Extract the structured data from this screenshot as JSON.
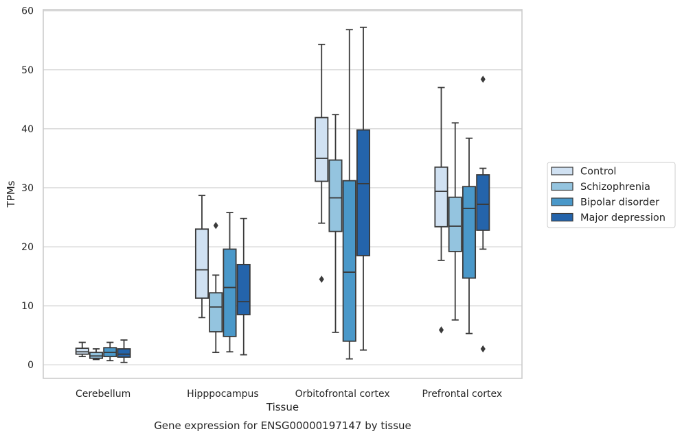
{
  "chart_data": {
    "type": "box",
    "title": "",
    "caption": "Gene expression for ENSG00000197147 by tissue",
    "xlabel": "Tissue",
    "ylabel": "TPMs",
    "ylim": [
      -2.3,
      60.2
    ],
    "yticks": [
      0,
      10,
      20,
      30,
      40,
      50,
      60
    ],
    "grid": "horizontal",
    "legend_position": "right",
    "categories": [
      "Cerebellum",
      "Hipppocampus",
      "Orbitofrontal cortex",
      "Prefrontal cortex"
    ],
    "series": [
      {
        "name": "Control",
        "color": "#d0e1f2",
        "boxes": [
          {
            "whisker_low": 1.4,
            "q1": 1.8,
            "median": 2.2,
            "q3": 2.8,
            "whisker_high": 3.8,
            "outliers": []
          },
          {
            "whisker_low": 8.0,
            "q1": 11.3,
            "median": 16.1,
            "q3": 23.0,
            "whisker_high": 28.7,
            "outliers": []
          },
          {
            "whisker_low": 24.0,
            "q1": 31.1,
            "median": 35.0,
            "q3": 41.9,
            "whisker_high": 54.3,
            "outliers": [
              14.5
            ]
          },
          {
            "whisker_low": 17.7,
            "q1": 23.4,
            "median": 29.4,
            "q3": 33.5,
            "whisker_high": 47.0,
            "outliers": [
              5.9
            ]
          }
        ]
      },
      {
        "name": "Schizophrenia",
        "color": "#94c4df",
        "boxes": [
          {
            "whisker_low": 0.9,
            "q1": 1.1,
            "median": 1.5,
            "q3": 2.1,
            "whisker_high": 2.7,
            "outliers": []
          },
          {
            "whisker_low": 2.1,
            "q1": 5.6,
            "median": 9.8,
            "q3": 12.2,
            "whisker_high": 15.2,
            "outliers": [
              23.6
            ]
          },
          {
            "whisker_low": 5.5,
            "q1": 22.6,
            "median": 28.3,
            "q3": 34.7,
            "whisker_high": 42.4,
            "outliers": []
          },
          {
            "whisker_low": 7.6,
            "q1": 19.2,
            "median": 23.5,
            "q3": 28.4,
            "whisker_high": 41.0,
            "outliers": []
          }
        ]
      },
      {
        "name": "Bipolar disorder",
        "color": "#4a98c9",
        "boxes": [
          {
            "whisker_low": 0.7,
            "q1": 1.4,
            "median": 2.1,
            "q3": 2.9,
            "whisker_high": 3.8,
            "outliers": []
          },
          {
            "whisker_low": 2.2,
            "q1": 4.8,
            "median": 13.1,
            "q3": 19.6,
            "whisker_high": 25.8,
            "outliers": []
          },
          {
            "whisker_low": 1.0,
            "q1": 4.0,
            "median": 15.7,
            "q3": 31.2,
            "whisker_high": 56.8,
            "outliers": []
          },
          {
            "whisker_low": 5.3,
            "q1": 14.7,
            "median": 26.5,
            "q3": 30.2,
            "whisker_high": 38.4,
            "outliers": []
          }
        ]
      },
      {
        "name": "Major depression",
        "color": "#2464ab",
        "boxes": [
          {
            "whisker_low": 0.4,
            "q1": 1.3,
            "median": 1.8,
            "q3": 2.7,
            "whisker_high": 4.2,
            "outliers": []
          },
          {
            "whisker_low": 1.7,
            "q1": 8.5,
            "median": 10.7,
            "q3": 17.0,
            "whisker_high": 24.8,
            "outliers": []
          },
          {
            "whisker_low": 2.5,
            "q1": 18.5,
            "median": 30.7,
            "q3": 39.8,
            "whisker_high": 57.2,
            "outliers": []
          },
          {
            "whisker_low": 19.6,
            "q1": 22.8,
            "median": 27.2,
            "q3": 32.2,
            "whisker_high": 33.3,
            "outliers": [
              48.4,
              2.7
            ]
          }
        ]
      }
    ]
  }
}
